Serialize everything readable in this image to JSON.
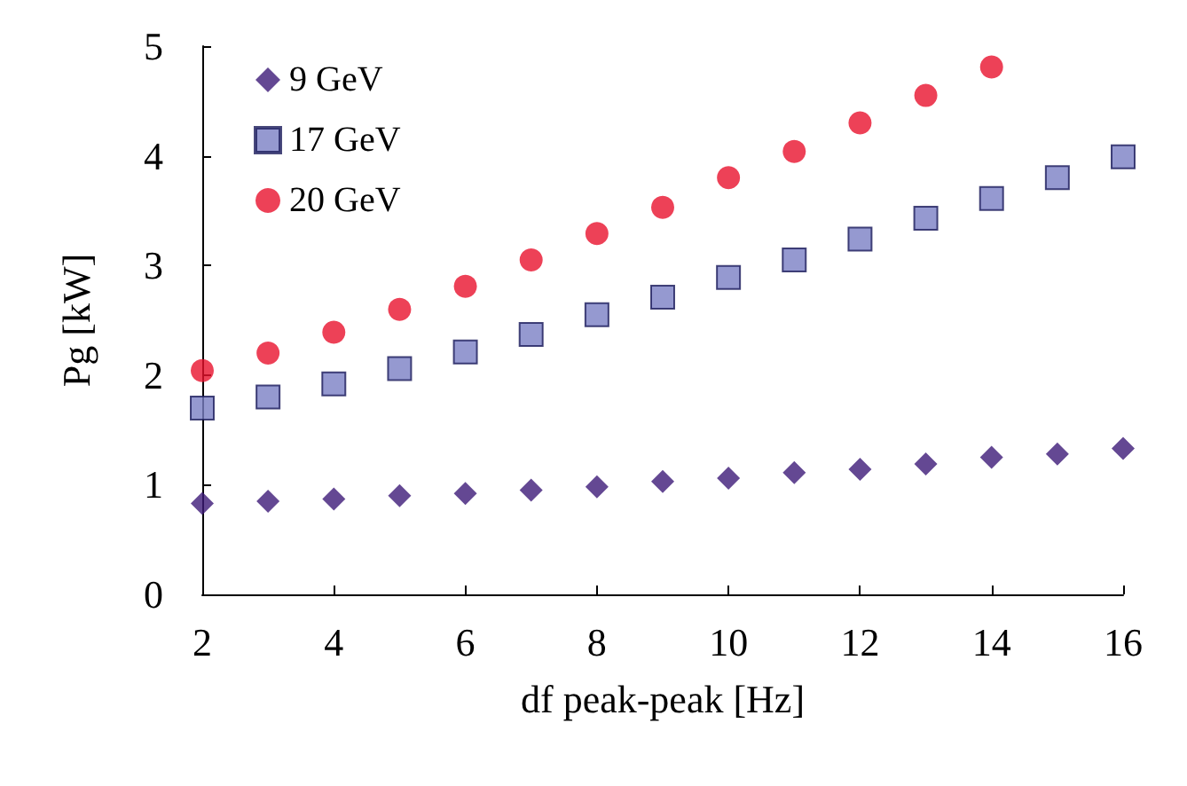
{
  "chart_data": {
    "type": "scatter",
    "xlabel": "df peak-peak [Hz]",
    "ylabel": "Pg [kW]",
    "x": [
      2,
      3,
      4,
      5,
      6,
      7,
      8,
      9,
      10,
      11,
      12,
      13,
      14,
      15,
      16
    ],
    "series": [
      {
        "name": "9 GeV",
        "color": "#3d1a78",
        "marker": "diamond",
        "values": [
          0.83,
          0.85,
          0.87,
          0.9,
          0.92,
          0.95,
          0.98,
          1.03,
          1.06,
          1.11,
          1.14,
          1.19,
          1.25,
          1.28,
          1.33
        ]
      },
      {
        "name": "17 GeV",
        "color": "#7b7fc4",
        "marker": "square",
        "values": [
          1.7,
          1.8,
          1.92,
          2.06,
          2.21,
          2.37,
          2.55,
          2.71,
          2.89,
          3.05,
          3.24,
          3.43,
          3.61,
          3.8,
          3.99
        ]
      },
      {
        "name": "20 GeV",
        "color": "#e8112d",
        "marker": "circle",
        "values": [
          2.04,
          2.2,
          2.39,
          2.6,
          2.81,
          3.05,
          3.29,
          3.53,
          3.8,
          4.04,
          4.3,
          4.55,
          4.81,
          null,
          null
        ]
      }
    ],
    "xlim": [
      2,
      16
    ],
    "xticks": [
      2,
      4,
      6,
      8,
      10,
      12,
      14,
      16
    ],
    "ylim": [
      0,
      5
    ],
    "yticks": [
      0,
      1,
      2,
      3,
      4,
      5
    ],
    "grid": false,
    "legend": "top left"
  }
}
